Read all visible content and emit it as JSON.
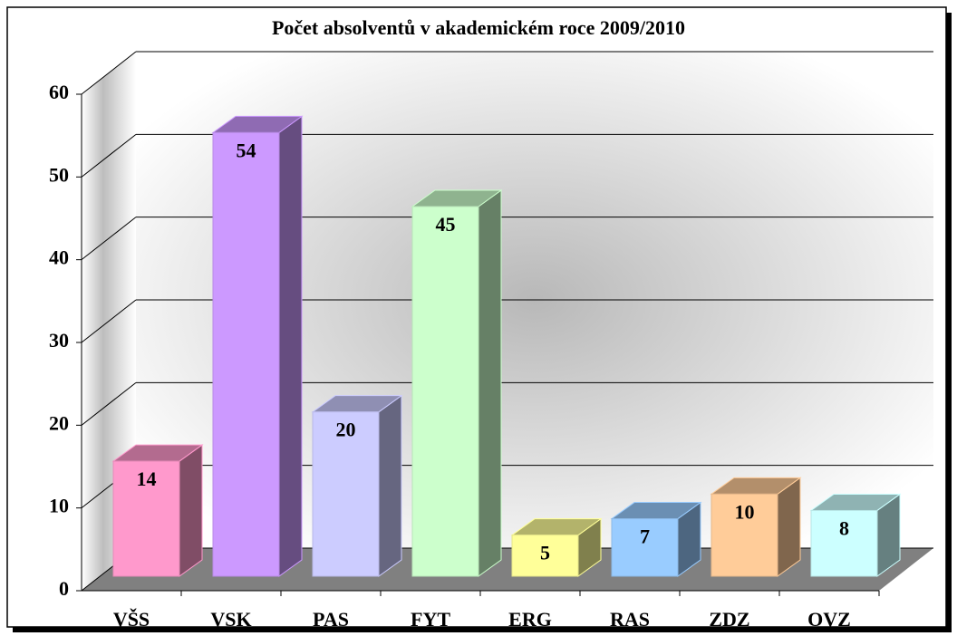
{
  "chart_data": {
    "type": "bar3d",
    "title": "Počet absolventů v akademickém roce 2009/2010",
    "categories": [
      "VŠS",
      "VSK",
      "PAS",
      "FYT",
      "ERG",
      "RAS",
      "ZDZ",
      "OVZ"
    ],
    "values": [
      14,
      54,
      20,
      45,
      5,
      7,
      10,
      8
    ],
    "colors": [
      "#ff99cc",
      "#cc99ff",
      "#ccccff",
      "#ccffcc",
      "#ffff99",
      "#99ccff",
      "#ffcc99",
      "#ccffff"
    ],
    "ylim": [
      0,
      60
    ],
    "yticks": [
      0,
      10,
      20,
      30,
      40,
      50,
      60
    ],
    "grid": true
  }
}
